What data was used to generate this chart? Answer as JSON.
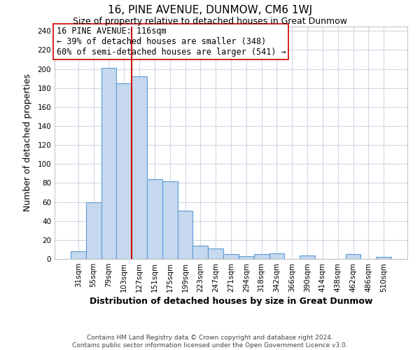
{
  "title": "16, PINE AVENUE, DUNMOW, CM6 1WJ",
  "subtitle": "Size of property relative to detached houses in Great Dunmow",
  "xlabel": "Distribution of detached houses by size in Great Dunmow",
  "ylabel": "Number of detached properties",
  "bar_labels": [
    "31sqm",
    "55sqm",
    "79sqm",
    "103sqm",
    "127sqm",
    "151sqm",
    "175sqm",
    "199sqm",
    "223sqm",
    "247sqm",
    "271sqm",
    "294sqm",
    "318sqm",
    "342sqm",
    "366sqm",
    "390sqm",
    "414sqm",
    "438sqm",
    "462sqm",
    "486sqm",
    "510sqm"
  ],
  "bar_values": [
    8,
    60,
    201,
    185,
    192,
    84,
    82,
    51,
    14,
    11,
    5,
    3,
    5,
    6,
    0,
    4,
    0,
    0,
    5,
    0,
    2
  ],
  "bar_color": "#c5d8ed",
  "bar_edge_color": "#5b9bd5",
  "grid_color": "#d0d8e4",
  "vline_x": 3.5,
  "vline_color": "#cc0000",
  "annotation_line1": "16 PINE AVENUE: 116sqm",
  "annotation_line2": "← 39% of detached houses are smaller (348)",
  "annotation_line3": "60% of semi-detached houses are larger (541) →",
  "ylim": [
    0,
    245
  ],
  "yticks": [
    0,
    20,
    40,
    60,
    80,
    100,
    120,
    140,
    160,
    180,
    200,
    220,
    240
  ],
  "footer_line1": "Contains HM Land Registry data © Crown copyright and database right 2024.",
  "footer_line2": "Contains public sector information licensed under the Open Government Licence v3.0.",
  "title_fontsize": 11,
  "subtitle_fontsize": 9,
  "axis_label_fontsize": 9,
  "tick_fontsize": 7.5,
  "annotation_fontsize": 8.5,
  "footer_fontsize": 6.5
}
